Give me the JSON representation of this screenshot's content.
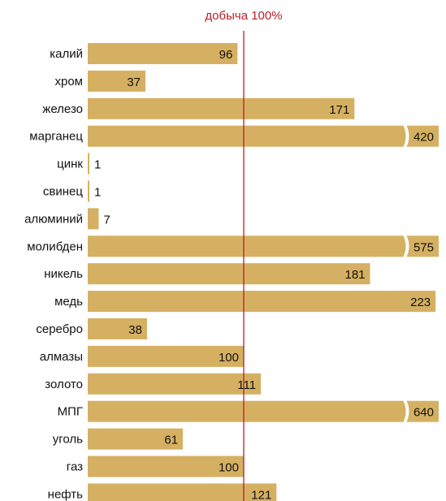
{
  "chart_data": {
    "type": "bar",
    "orientation": "horizontal",
    "reference_line": {
      "label": "добыча 100%",
      "value": 100,
      "color": "#b5202a"
    },
    "categories": [
      "калий",
      "хром",
      "железо",
      "марганец",
      "цинк",
      "свинец",
      "алюминий",
      "молибден",
      "никель",
      "медь",
      "серебро",
      "алмазы",
      "золото",
      "МПГ",
      "уголь",
      "газ",
      "нефть"
    ],
    "values": [
      96,
      37,
      171,
      420,
      1,
      1,
      7,
      575,
      181,
      223,
      38,
      100,
      111,
      640,
      61,
      100,
      121
    ],
    "value_labels": [
      "96",
      "37",
      "171",
      "420",
      "1",
      "1",
      "7",
      "575",
      "181",
      "223",
      "38",
      "100",
      "111",
      "640",
      "61",
      "100",
      "121"
    ],
    "truncated": [
      false,
      false,
      false,
      true,
      false,
      false,
      false,
      true,
      false,
      false,
      false,
      false,
      false,
      true,
      false,
      false,
      false
    ],
    "bar_color": "#d5b062",
    "grid": false,
    "legend": "none"
  }
}
